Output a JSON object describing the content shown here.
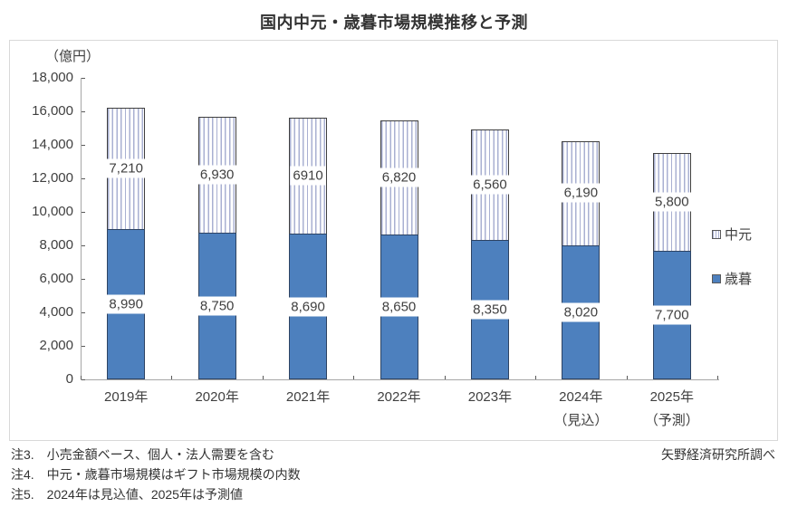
{
  "title": "国内中元・歳暮市場規模推移と予測",
  "source": "矢野経済研究所調べ",
  "notes": [
    "注3.　小売金額ベース、個人・法人需要を含む",
    "注4.　中元・歳暮市場規模はギフト市場規模の内数",
    "注5.　2024年は見込値、2025年は予測値"
  ],
  "chart_data": {
    "type": "bar",
    "stacked": true,
    "title": "国内中元・歳暮市場規模推移と予測",
    "unit_label": "（億円）",
    "categories": [
      "2019年",
      "2020年",
      "2021年",
      "2022年",
      "2023年",
      "2024年",
      "2025年"
    ],
    "category_sublabels": [
      "",
      "",
      "",
      "",
      "",
      "（見込）",
      "（予測）"
    ],
    "series": [
      {
        "name": "歳暮",
        "values": [
          8990,
          8750,
          8690,
          8650,
          8350,
          8020,
          7700
        ],
        "labels": [
          "8,990",
          "8,750",
          "8,690",
          "8,650",
          "8,350",
          "8,020",
          "7,700"
        ],
        "pattern": "solid",
        "color": "#4D80BE",
        "border_color": "#2d4363"
      },
      {
        "name": "中元",
        "values": [
          7210,
          6930,
          6910,
          6820,
          6560,
          6190,
          5800
        ],
        "labels": [
          "7,210",
          "6,930",
          "6910",
          "6,820",
          "6,560",
          "6,190",
          "5,800"
        ],
        "pattern": "vertical-hatch",
        "color": "#ffffff",
        "hatch_color": "#a9b0d2",
        "border_color": "#3f3f3f"
      }
    ],
    "ylim": [
      0,
      18000
    ],
    "ytick_step": 2000,
    "grid": false,
    "legend": [
      {
        "label": "中元",
        "swatch": "hatch"
      },
      {
        "label": "歳暮",
        "swatch": "solid-blue"
      }
    ],
    "legend_position": "right",
    "axis_color": "#a6a6a6"
  }
}
